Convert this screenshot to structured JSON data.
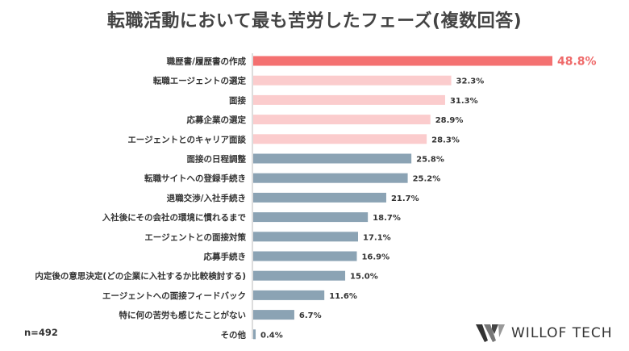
{
  "title": "転職活動において最も苦労したフェーズ(複数回答)",
  "note": "n=492",
  "brand": "WILLOF TECH",
  "colors": {
    "top": "#f47171",
    "pink": "#fbcccd",
    "steel": "#8ba3b4"
  },
  "chart_data": {
    "type": "bar",
    "orientation": "horizontal",
    "categories": [
      "職歴書/履歴書の作成",
      "転職エージェントの選定",
      "面接",
      "応募企業の選定",
      "エージェントとのキャリア面談",
      "面接の日程調整",
      "転職サイトへの登録手続き",
      "退職交渉/入社手続き",
      "入社後にその会社の環境に慣れるまで",
      "エージェントとの面接対策",
      "応募手続き",
      "内定後の意思決定(どの企業に入社するか比較検討する)",
      "エージェントへの面接フィードバック",
      "特に何の苦労も感じたことがない",
      "その他"
    ],
    "values": [
      48.8,
      32.3,
      31.3,
      28.9,
      28.3,
      25.8,
      25.2,
      21.7,
      18.7,
      17.1,
      16.9,
      15.0,
      11.6,
      6.7,
      0.4
    ],
    "value_labels": [
      "48.8%",
      "32.3%",
      "31.3%",
      "28.9%",
      "28.3%",
      "25.8%",
      "25.2%",
      "21.7%",
      "18.7%",
      "17.1%",
      "16.9%",
      "15.0%",
      "11.6%",
      "6.7%",
      "0.4%"
    ],
    "color_groups": [
      "top",
      "pink",
      "pink",
      "pink",
      "pink",
      "steel",
      "steel",
      "steel",
      "steel",
      "steel",
      "steel",
      "steel",
      "steel",
      "steel",
      "steel"
    ],
    "xlim": [
      0,
      48.8
    ],
    "grid": false
  }
}
